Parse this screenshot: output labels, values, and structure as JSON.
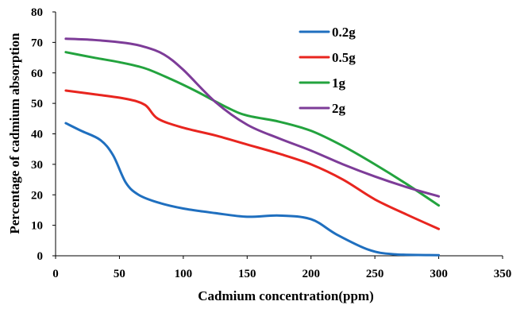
{
  "chart_data": {
    "type": "line",
    "xlabel": "Cadmium concentration(ppm)",
    "ylabel": "Percentage of cadmium absorption",
    "xlim": [
      0,
      350
    ],
    "ylim": [
      0,
      80
    ],
    "x_ticks": [
      0,
      50,
      100,
      150,
      200,
      250,
      300,
      350
    ],
    "y_ticks": [
      0,
      10,
      20,
      30,
      40,
      50,
      60,
      70,
      80
    ],
    "grid": false,
    "legend_position": "top-right",
    "series": [
      {
        "name": "0.2g",
        "color": "#1f6fbf",
        "x": [
          8,
          20,
          35,
          45,
          55,
          65,
          80,
          100,
          125,
          150,
          175,
          200,
          220,
          245,
          265,
          300
        ],
        "y": [
          43.5,
          41,
          38,
          33,
          24,
          20,
          17.5,
          15.5,
          14,
          12.8,
          13.2,
          12,
          7,
          2,
          0.5,
          0.2
        ]
      },
      {
        "name": "0.5g",
        "color": "#e8251f",
        "x": [
          8,
          30,
          55,
          70,
          80,
          100,
          125,
          150,
          175,
          200,
          225,
          250,
          275,
          300
        ],
        "y": [
          54.2,
          53,
          51.5,
          49.5,
          45,
          42,
          39.5,
          36.5,
          33.5,
          30,
          25,
          18.5,
          13.5,
          8.8
        ]
      },
      {
        "name": "1g",
        "color": "#23a33e",
        "x": [
          8,
          30,
          50,
          70,
          90,
          110,
          135,
          150,
          175,
          200,
          225,
          250,
          275,
          300
        ],
        "y": [
          66.8,
          65,
          63.5,
          61.5,
          58,
          54,
          48.5,
          46,
          44,
          41,
          36,
          30,
          23.5,
          16.5
        ]
      },
      {
        "name": "2g",
        "color": "#7d3c98",
        "x": [
          8,
          30,
          55,
          70,
          85,
          100,
          125,
          150,
          175,
          200,
          225,
          250,
          275,
          300
        ],
        "y": [
          71.2,
          70.8,
          69.8,
          68.5,
          66,
          61,
          50.5,
          43,
          38.5,
          34.5,
          30,
          26,
          22.5,
          19.5
        ]
      }
    ]
  }
}
